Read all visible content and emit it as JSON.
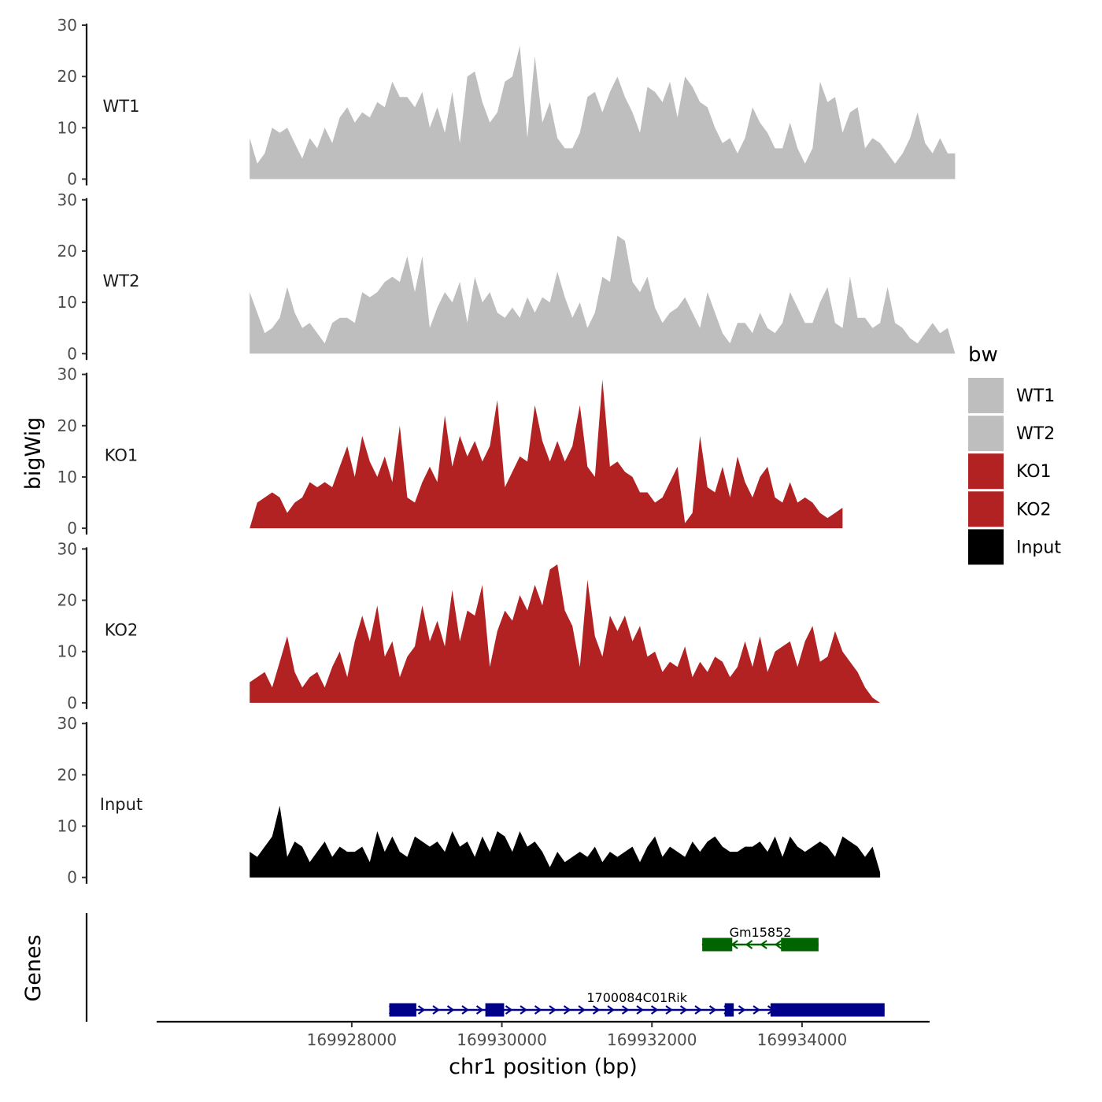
{
  "chart_data": {
    "type": "area",
    "ylabel": "bigWig",
    "xlabel": "chr1 position (bp)",
    "xlim": [
      169925400,
      169935700
    ],
    "x_ticks": [
      169928000,
      169930000,
      169932000,
      169934000
    ],
    "x_tick_labels": [
      "169928000",
      "169930000",
      "169932000",
      "169934000"
    ],
    "ylim": [
      0,
      30
    ],
    "y_ticks": [
      0,
      10,
      20,
      30
    ],
    "y_tick_labels": [
      "0",
      "10",
      "20",
      "30"
    ],
    "x_start": 169926640,
    "x_step": 100,
    "tracks": [
      {
        "name": "WT1",
        "color": "#bebebe",
        "values": [
          8,
          3,
          5,
          10,
          9,
          10,
          7,
          4,
          8,
          6,
          10,
          7,
          12,
          14,
          11,
          13,
          12,
          15,
          14,
          19,
          16,
          16,
          14,
          17,
          10,
          14,
          9,
          17,
          7,
          20,
          21,
          15,
          11,
          13,
          19,
          20,
          26,
          8,
          24,
          11,
          15,
          8,
          6,
          6,
          9,
          16,
          17,
          13,
          17,
          20,
          16,
          13,
          9,
          18,
          17,
          15,
          19,
          12,
          20,
          18,
          15,
          14,
          10,
          7,
          8,
          5,
          8,
          14,
          11,
          9,
          6,
          6,
          11,
          6,
          3,
          6,
          19,
          15,
          16,
          9,
          13,
          14,
          6,
          8,
          7,
          5,
          3,
          5,
          8,
          13,
          7,
          5,
          8,
          5,
          5
        ]
      },
      {
        "name": "WT2",
        "color": "#bebebe",
        "values": [
          12,
          8,
          4,
          5,
          7,
          13,
          8,
          5,
          6,
          4,
          2,
          6,
          7,
          7,
          6,
          12,
          11,
          12,
          14,
          15,
          14,
          19,
          12,
          19,
          5,
          9,
          12,
          10,
          14,
          6,
          15,
          10,
          12,
          8,
          7,
          9,
          7,
          11,
          8,
          11,
          10,
          16,
          11,
          7,
          10,
          5,
          8,
          15,
          14,
          23,
          22,
          14,
          12,
          15,
          9,
          6,
          8,
          9,
          11,
          8,
          5,
          12,
          8,
          4,
          2,
          6,
          6,
          4,
          8,
          5,
          4,
          6,
          12,
          9,
          6,
          6,
          10,
          13,
          6,
          5,
          15,
          7,
          7,
          5,
          6,
          13,
          6,
          5,
          3,
          2,
          4,
          6,
          4,
          5,
          0
        ]
      },
      {
        "name": "KO1",
        "color": "#b22222",
        "values": [
          0,
          5,
          6,
          7,
          6,
          3,
          5,
          6,
          9,
          8,
          9,
          8,
          12,
          16,
          10,
          18,
          13,
          10,
          14,
          9,
          20,
          6,
          5,
          9,
          12,
          9,
          22,
          12,
          18,
          14,
          17,
          13,
          16,
          25,
          8,
          11,
          14,
          13,
          24,
          17,
          13,
          17,
          13,
          16,
          24,
          12,
          10,
          29,
          12,
          13,
          11,
          10,
          7,
          7,
          5,
          6,
          9,
          12,
          1,
          3,
          18,
          8,
          7,
          12,
          6,
          14,
          9,
          6,
          10,
          12,
          6,
          5,
          9,
          5,
          6,
          5,
          3,
          2,
          3,
          4
        ]
      },
      {
        "name": "KO2",
        "color": "#b22222",
        "values": [
          4,
          5,
          6,
          3,
          8,
          13,
          6,
          3,
          5,
          6,
          3,
          7,
          10,
          5,
          12,
          17,
          12,
          19,
          9,
          12,
          5,
          9,
          11,
          19,
          12,
          16,
          11,
          22,
          12,
          18,
          17,
          23,
          7,
          14,
          18,
          16,
          21,
          18,
          23,
          19,
          26,
          27,
          18,
          15,
          7,
          24,
          13,
          9,
          17,
          14,
          17,
          12,
          15,
          9,
          10,
          6,
          8,
          7,
          11,
          5,
          8,
          6,
          9,
          8,
          5,
          7,
          12,
          7,
          13,
          6,
          10,
          11,
          12,
          7,
          12,
          15,
          8,
          9,
          14,
          10,
          8,
          6,
          3,
          1,
          0
        ]
      },
      {
        "name": "Input",
        "color": "#000000",
        "values": [
          5,
          4,
          6,
          8,
          14,
          4,
          7,
          6,
          3,
          5,
          7,
          4,
          6,
          5,
          5,
          6,
          3,
          9,
          5,
          8,
          5,
          4,
          8,
          7,
          6,
          7,
          5,
          9,
          6,
          7,
          4,
          8,
          5,
          9,
          8,
          5,
          9,
          6,
          7,
          5,
          2,
          5,
          3,
          4,
          5,
          4,
          6,
          3,
          5,
          4,
          5,
          6,
          3,
          6,
          8,
          4,
          6,
          5,
          4,
          7,
          5,
          7,
          8,
          6,
          5,
          5,
          6,
          6,
          7,
          5,
          8,
          4,
          8,
          6,
          5,
          6,
          7,
          6,
          4,
          8,
          7,
          6,
          4,
          6,
          1
        ]
      }
    ],
    "genes": [
      {
        "name": "Gm15852",
        "strand": "-",
        "color": "#006400",
        "start": 169932670,
        "end": 169934220,
        "exons": [
          [
            169932670,
            169933070
          ],
          [
            169933720,
            169934220
          ]
        ]
      },
      {
        "name": "1700084C01Rik",
        "strand": "+",
        "color": "#00008b",
        "start": 169928500,
        "end": 169935100,
        "exons": [
          [
            169928500,
            169928860
          ],
          [
            169929780,
            169930030
          ],
          [
            169932970,
            169933090
          ],
          [
            169933580,
            169935100
          ]
        ]
      }
    ],
    "gene_track_label": "Genes",
    "legend": {
      "title": "bw",
      "position": "right",
      "entries": [
        {
          "label": "WT1",
          "color": "#bebebe"
        },
        {
          "label": "WT2",
          "color": "#bebebe"
        },
        {
          "label": "KO1",
          "color": "#b22222"
        },
        {
          "label": "KO2",
          "color": "#b22222"
        },
        {
          "label": "Input",
          "color": "#000000"
        }
      ]
    }
  }
}
